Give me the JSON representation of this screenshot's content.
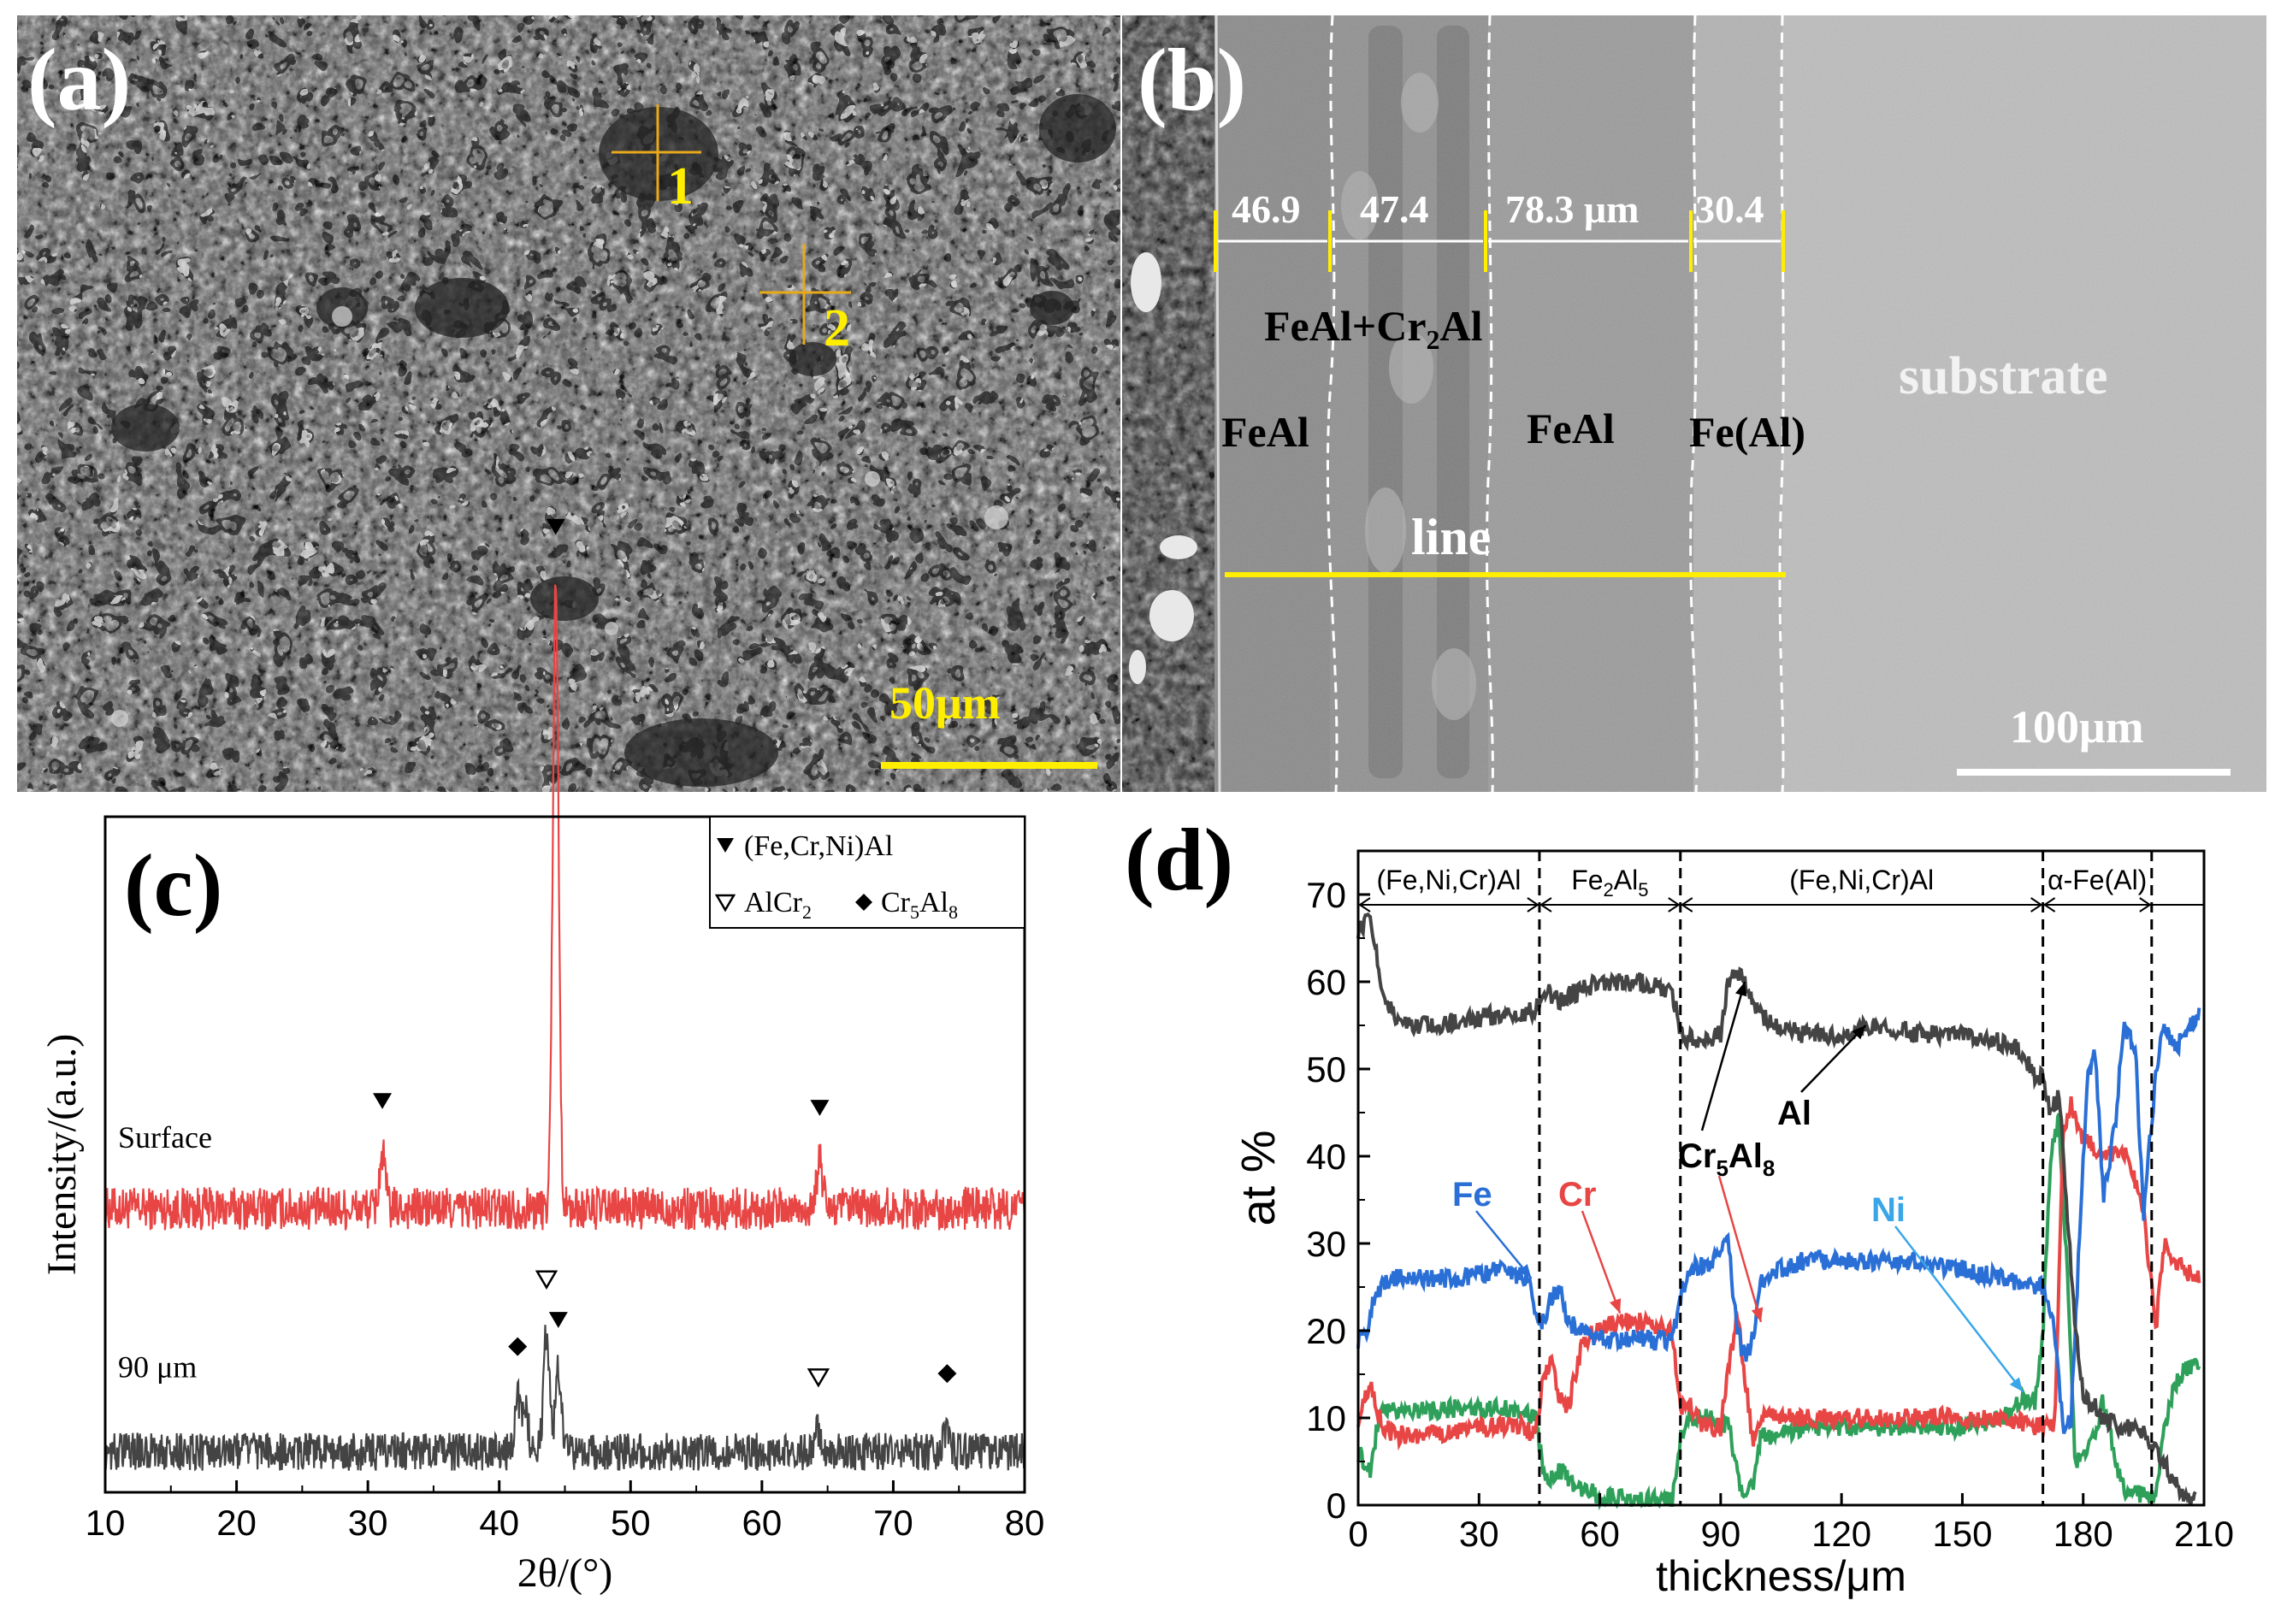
{
  "figure": {
    "panel_a": {
      "letter": "(a)",
      "points": [
        "1",
        "2"
      ],
      "scale_label": "50μm",
      "colors": {
        "accent": "#ffee00",
        "marker": "#e8a91a"
      }
    },
    "panel_b": {
      "letter": "(b)",
      "thickness_labels": [
        "46.9",
        "47.4",
        "78.3 μm",
        "30.4"
      ],
      "phase_labels": {
        "feal_cr2al_prefix": "FeAl+Cr",
        "feal_cr2al_sub": "2",
        "feal_cr2al_suffix": "Al",
        "feal_left": "FeAl",
        "feal_mid": "FeAl",
        "fe_al": "Fe(Al)",
        "substrate": "substrate"
      },
      "line_label": "line",
      "scale_label": "100μm"
    }
  },
  "chart_data": [
    {
      "type": "line",
      "panel_letter": "(c)",
      "title": "",
      "xlabel": "2θ/(°)",
      "ylabel": "Intensity/(a.u.)",
      "xlim": [
        10,
        80
      ],
      "xticks": [
        10,
        20,
        30,
        40,
        50,
        60,
        70,
        80
      ],
      "ylim": [
        0,
        100
      ],
      "series": [
        {
          "name": "Surface",
          "color": "#e84545",
          "baseline": 42,
          "noise": 3.2,
          "peaks": [
            {
              "x": 31.1,
              "height": 8,
              "marker": "filled-down-triangle"
            },
            {
              "x": 44.3,
              "height": 93,
              "marker": "filled-down-triangle"
            },
            {
              "x": 64.4,
              "height": 7,
              "marker": "filled-down-triangle"
            }
          ]
        },
        {
          "name": "90 μm",
          "color": "#444444",
          "baseline": 6,
          "noise": 2.8,
          "peaks": [
            {
              "x": 41.4,
              "height": 8,
              "marker": "filled-diamond"
            },
            {
              "x": 42.0,
              "height": 6
            },
            {
              "x": 43.6,
              "height": 18,
              "marker": "open-down-triangle"
            },
            {
              "x": 44.5,
              "height": 12,
              "marker": "filled-down-triangle"
            },
            {
              "x": 64.3,
              "height": 3.5,
              "marker": "open-down-triangle"
            },
            {
              "x": 74.1,
              "height": 4,
              "marker": "filled-diamond"
            }
          ]
        }
      ],
      "legend": {
        "position": "top-right",
        "entries": [
          {
            "symbol": "filled-down-triangle",
            "label": "(Fe,Cr,Ni)Al"
          },
          {
            "symbol": "open-down-triangle",
            "label_prefix": "AlCr",
            "label_sub": "2"
          },
          {
            "symbol": "filled-diamond",
            "label_prefix": "Cr",
            "label_sub": "5",
            "label_suffix": "Al",
            "label_sub2": "8"
          }
        ]
      }
    },
    {
      "type": "line",
      "panel_letter": "(d)",
      "title": "",
      "xlabel": "thickness/μm",
      "ylabel": "at %",
      "xlim": [
        0,
        210
      ],
      "ylim": [
        0,
        75
      ],
      "xticks": [
        0,
        30,
        60,
        90,
        120,
        150,
        180,
        210
      ],
      "yticks": [
        0,
        10,
        20,
        30,
        40,
        50,
        60,
        70
      ],
      "boundaries": [
        45,
        80,
        170,
        197
      ],
      "regions": [
        {
          "label": "(Fe,Ni,Cr)Al",
          "from": 0,
          "to": 45
        },
        {
          "label_prefix": "Fe",
          "label_sub": "2",
          "label_mid": "Al",
          "label_sub2": "5",
          "from": 45,
          "to": 80
        },
        {
          "label": "(Fe,Ni,Cr)Al",
          "from": 80,
          "to": 170
        },
        {
          "label": "α-Fe(Al)",
          "from": 170,
          "to": 197
        }
      ],
      "series": [
        {
          "name": "Al",
          "color": "#444444",
          "x": [
            0,
            3,
            6,
            10,
            20,
            30,
            40,
            44,
            46,
            50,
            60,
            70,
            78,
            80,
            85,
            90,
            92,
            95,
            100,
            110,
            120,
            130,
            140,
            150,
            160,
            165,
            168,
            170,
            172,
            174,
            176,
            178,
            180,
            185,
            190,
            195,
            198,
            200,
            202,
            205,
            208
          ],
          "y": [
            66,
            67,
            59,
            55,
            55,
            56,
            56,
            57,
            59,
            58,
            60,
            60,
            59,
            54,
            53,
            54,
            60,
            61,
            56,
            54,
            54,
            55,
            54,
            54,
            53,
            52,
            49,
            49,
            45,
            47,
            34,
            20,
            13,
            10,
            9,
            8,
            6,
            5,
            3,
            1,
            0.5
          ]
        },
        {
          "name": "Fe",
          "color": "#2a6fd6",
          "x": [
            0,
            2,
            4,
            8,
            15,
            25,
            35,
            42,
            44,
            46,
            48,
            50,
            52,
            56,
            60,
            70,
            78,
            80,
            82,
            88,
            92,
            94,
            96,
            98,
            100,
            104,
            110,
            120,
            130,
            140,
            150,
            160,
            168,
            170,
            173,
            175,
            177,
            179,
            181,
            183,
            185,
            188,
            190,
            193,
            195,
            196,
            198,
            200,
            203,
            206,
            209
          ],
          "y": [
            19,
            20,
            24,
            26,
            26,
            26,
            27,
            26,
            22,
            21,
            24,
            25,
            21,
            20,
            19,
            19,
            19,
            24,
            27,
            28,
            30,
            20,
            17,
            19,
            26,
            27,
            28,
            28,
            28,
            28,
            27,
            26,
            25,
            25,
            20,
            9,
            10,
            30,
            49,
            52,
            35,
            44,
            55,
            52,
            33,
            39,
            49,
            55,
            52,
            55,
            56
          ]
        },
        {
          "name": "Cr",
          "color": "#e84545",
          "x": [
            0,
            3,
            6,
            10,
            20,
            30,
            40,
            44,
            46,
            48,
            50,
            52,
            56,
            60,
            64,
            70,
            78,
            80,
            82,
            85,
            90,
            94,
            96,
            98,
            100,
            104,
            110,
            120,
            140,
            160,
            168,
            170,
            173,
            175,
            177,
            180,
            185,
            190,
            195,
            198,
            200,
            205,
            209
          ],
          "y": [
            10,
            14,
            9,
            8,
            8,
            9,
            9,
            8,
            15,
            16,
            12,
            11,
            19,
            20,
            21,
            21,
            20,
            11,
            12,
            9,
            9,
            22,
            15,
            7,
            10,
            10,
            10,
            10,
            10,
            10,
            9,
            9,
            9,
            43,
            46,
            42,
            40,
            41,
            34,
            20,
            30,
            27,
            26
          ]
        },
        {
          "name": "Ni",
          "color": "#2ea05a",
          "x": [
            0,
            3,
            5,
            8,
            20,
            30,
            40,
            44,
            46,
            48,
            50,
            55,
            60,
            70,
            78,
            80,
            82,
            88,
            92,
            95,
            98,
            100,
            105,
            110,
            130,
            150,
            160,
            165,
            168,
            170,
            172,
            174,
            176,
            178,
            180,
            183,
            185,
            188,
            190,
            195,
            198,
            200,
            203,
            206,
            209
          ],
          "y": [
            6,
            4,
            10,
            11,
            11,
            11,
            11,
            10,
            4,
            3,
            4,
            2,
            1,
            0.5,
            0.5,
            8,
            10,
            10,
            9,
            2,
            2,
            8,
            8,
            9,
            9,
            9,
            10,
            12,
            12,
            20,
            41,
            44,
            27,
            5,
            5,
            8,
            12,
            5,
            2,
            1,
            1,
            9,
            14,
            16,
            16
          ]
        }
      ],
      "annotations": [
        {
          "text": "Fe",
          "color": "#2a6fd6",
          "arrow_to": [
            43,
            26
          ]
        },
        {
          "text": "Cr",
          "color": "#e84545",
          "arrow_to": [
            65,
            22
          ]
        },
        {
          "text_prefix": "Cr",
          "text_sub": "5",
          "text_mid": "Al",
          "text_sub2": "8",
          "color": "#000000",
          "arrows_to": [
            [
              96,
              60
            ],
            [
              100,
              21
            ]
          ]
        },
        {
          "text": "Al",
          "color": "#000000",
          "arrow_to": [
            126,
            55
          ]
        },
        {
          "text": "Ni",
          "color": "#3aa6e8",
          "arrow_to": [
            165,
            13
          ]
        }
      ]
    }
  ]
}
